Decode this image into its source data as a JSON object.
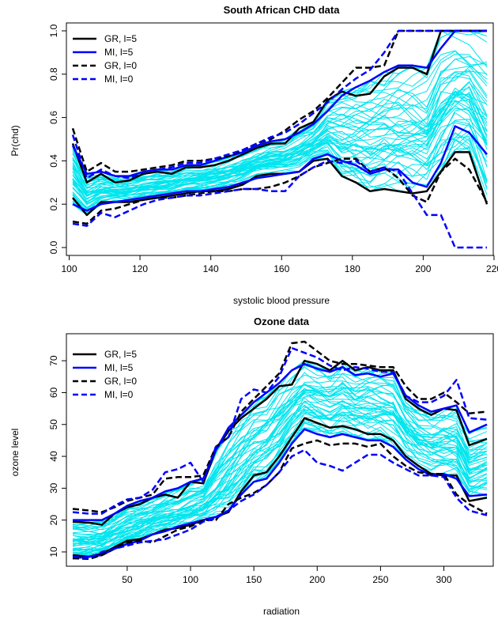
{
  "colors": {
    "band": "#00e5ee",
    "gr": "#000000",
    "mi": "#0000ff",
    "axis": "#000000",
    "background": "#ffffff"
  },
  "chart_data": [
    {
      "type": "line",
      "title": "South African CHD data",
      "xlabel": "systolic blood pressure",
      "ylabel": "Pr(chd)",
      "xlim": [
        101,
        218
      ],
      "ylim": [
        0,
        1
      ],
      "xticks": [
        100,
        120,
        140,
        160,
        180,
        200,
        220
      ],
      "yticks": [
        0.0,
        0.2,
        0.4,
        0.6,
        0.8,
        1.0
      ],
      "ytick_labels": [
        "0.0",
        "0.2",
        "0.4",
        "0.6",
        "0.8",
        "1.0"
      ],
      "grid": false,
      "legend_position": "top-left",
      "legend": [
        {
          "label": "GR, l=5",
          "color": "#000000",
          "style": "solid"
        },
        {
          "label": "MI, l=5",
          "color": "#0000ff",
          "style": "solid"
        },
        {
          "label": "GR, l=0",
          "color": "#000000",
          "style": "dashed"
        },
        {
          "label": "MI, l=0",
          "color": "#0000ff",
          "style": "dashed"
        }
      ],
      "x": [
        101,
        105,
        109,
        113,
        117,
        121,
        125,
        129,
        133,
        137,
        141,
        145,
        149,
        153,
        157,
        161,
        165,
        169,
        173,
        177,
        181,
        185,
        189,
        193,
        197,
        201,
        205,
        209,
        213,
        218
      ],
      "series": [
        {
          "name": "GR, l=5",
          "style": "solid",
          "color": "#000000",
          "values": [
            0.48,
            0.3,
            0.34,
            0.3,
            0.31,
            0.34,
            0.35,
            0.34,
            0.37,
            0.37,
            0.38,
            0.4,
            0.43,
            0.46,
            0.48,
            0.48,
            0.55,
            0.58,
            0.68,
            0.72,
            0.7,
            0.71,
            0.79,
            0.83,
            0.83,
            0.8,
            1.0,
            1.0,
            1.0,
            1.0
          ]
        },
        {
          "name": "GR, l=5",
          "style": "solid",
          "color": "#000000",
          "values": [
            0.23,
            0.15,
            0.21,
            0.21,
            0.21,
            0.22,
            0.23,
            0.24,
            0.25,
            0.26,
            0.26,
            0.27,
            0.29,
            0.33,
            0.34,
            0.34,
            0.35,
            0.4,
            0.41,
            0.33,
            0.3,
            0.26,
            0.27,
            0.26,
            0.25,
            0.26,
            0.35,
            0.44,
            0.44,
            0.2
          ]
        },
        {
          "name": "MI, l=5",
          "style": "solid",
          "color": "#0000ff",
          "values": [
            0.47,
            0.34,
            0.35,
            0.33,
            0.33,
            0.35,
            0.36,
            0.36,
            0.38,
            0.38,
            0.4,
            0.42,
            0.44,
            0.47,
            0.49,
            0.5,
            0.53,
            0.57,
            0.63,
            0.7,
            0.74,
            0.77,
            0.81,
            0.84,
            0.84,
            0.83,
            0.92,
            1.0,
            1.0,
            1.0
          ]
        },
        {
          "name": "MI, l=5",
          "style": "solid",
          "color": "#0000ff",
          "values": [
            0.2,
            0.17,
            0.2,
            0.21,
            0.22,
            0.23,
            0.24,
            0.25,
            0.26,
            0.26,
            0.27,
            0.28,
            0.3,
            0.32,
            0.33,
            0.34,
            0.35,
            0.41,
            0.43,
            0.4,
            0.38,
            0.34,
            0.36,
            0.36,
            0.3,
            0.28,
            0.39,
            0.56,
            0.53,
            0.43
          ]
        },
        {
          "name": "GR, l=0",
          "style": "dashed",
          "color": "#000000",
          "values": [
            0.55,
            0.35,
            0.39,
            0.35,
            0.35,
            0.36,
            0.37,
            0.38,
            0.4,
            0.4,
            0.41,
            0.42,
            0.45,
            0.48,
            0.5,
            0.54,
            0.59,
            0.63,
            0.69,
            0.76,
            0.83,
            0.83,
            0.84,
            1.0,
            1.0,
            1.0,
            1.0,
            1.0,
            1.0,
            1.0
          ]
        },
        {
          "name": "GR, l=0",
          "style": "dashed",
          "color": "#000000",
          "values": [
            0.12,
            0.11,
            0.17,
            0.18,
            0.2,
            0.22,
            0.23,
            0.23,
            0.24,
            0.25,
            0.26,
            0.26,
            0.27,
            0.27,
            0.28,
            0.3,
            0.33,
            0.37,
            0.39,
            0.41,
            0.41,
            0.35,
            0.37,
            0.32,
            0.24,
            0.21,
            0.35,
            0.41,
            0.36,
            0.21
          ]
        },
        {
          "name": "MI, l=0",
          "style": "dashed",
          "color": "#0000ff",
          "values": [
            0.52,
            0.32,
            0.36,
            0.33,
            0.32,
            0.35,
            0.36,
            0.37,
            0.39,
            0.39,
            0.41,
            0.43,
            0.45,
            0.48,
            0.51,
            0.53,
            0.57,
            0.62,
            0.67,
            0.73,
            0.78,
            0.82,
            0.9,
            1.0,
            1.0,
            1.0,
            1.0,
            1.0,
            1.0,
            1.0
          ]
        },
        {
          "name": "MI, l=0",
          "style": "dashed",
          "color": "#0000ff",
          "values": [
            0.11,
            0.1,
            0.16,
            0.14,
            0.17,
            0.2,
            0.22,
            0.23,
            0.24,
            0.24,
            0.25,
            0.26,
            0.27,
            0.27,
            0.26,
            0.26,
            0.33,
            0.37,
            0.4,
            0.39,
            0.4,
            0.35,
            0.37,
            0.35,
            0.25,
            0.15,
            0.15,
            0.0,
            0.0,
            0.0
          ]
        }
      ]
    },
    {
      "type": "line",
      "title": "Ozone data",
      "xlabel": "radiation",
      "ylabel": "ozone level",
      "xlim": [
        7,
        334
      ],
      "ylim": [
        8,
        76
      ],
      "xticks": [
        50,
        100,
        150,
        200,
        250,
        300
      ],
      "yticks": [
        10,
        20,
        30,
        40,
        50,
        60,
        70
      ],
      "ytick_labels": [
        "10",
        "20",
        "30",
        "40",
        "50",
        "60",
        "70"
      ],
      "grid": false,
      "legend_position": "top-left",
      "legend": [
        {
          "label": "GR, l=5",
          "color": "#000000",
          "style": "solid"
        },
        {
          "label": "MI, l=5",
          "color": "#0000ff",
          "style": "solid"
        },
        {
          "label": "GR, l=0",
          "color": "#000000",
          "style": "dashed"
        },
        {
          "label": "MI, l=0",
          "color": "#0000ff",
          "style": "dashed"
        }
      ],
      "x": [
        7,
        20,
        30,
        40,
        50,
        60,
        70,
        80,
        90,
        100,
        110,
        120,
        130,
        140,
        150,
        160,
        170,
        180,
        190,
        200,
        210,
        220,
        230,
        240,
        250,
        260,
        270,
        280,
        290,
        300,
        310,
        320,
        334
      ],
      "series": [
        {
          "name": "GR, l=5",
          "style": "solid",
          "color": "#000000",
          "values": [
            19.5,
            19.2,
            18.5,
            22,
            24,
            25,
            27,
            28,
            27,
            32,
            31.5,
            42,
            48,
            52,
            55,
            58,
            62,
            62.5,
            70,
            69,
            67,
            70,
            67,
            68,
            67,
            67,
            58,
            55,
            53,
            55,
            54.5,
            43.5,
            45.5
          ]
        },
        {
          "name": "GR, l=5",
          "style": "solid",
          "color": "#000000",
          "values": [
            9,
            8.5,
            9.5,
            11.5,
            13.5,
            14,
            15.5,
            17,
            17.5,
            18.5,
            20,
            21,
            22.5,
            29,
            34,
            35,
            40,
            46,
            52,
            50.5,
            49,
            49.5,
            48.5,
            47,
            47,
            45,
            40,
            37,
            34.5,
            34,
            34,
            26,
            27
          ]
        },
        {
          "name": "MI, l=5",
          "style": "solid",
          "color": "#0000ff",
          "values": [
            20,
            20,
            20,
            22,
            24.5,
            26,
            27,
            29,
            30,
            32,
            33,
            42,
            49,
            53,
            57,
            60,
            63,
            67,
            69,
            67.5,
            66.5,
            68,
            65.5,
            66,
            65,
            66,
            59,
            56,
            54,
            55,
            56,
            47.5,
            50
          ]
        },
        {
          "name": "MI, l=5",
          "style": "solid",
          "color": "#0000ff",
          "values": [
            8,
            8.5,
            9,
            11,
            12.5,
            13.5,
            15.5,
            16.5,
            18,
            19,
            20,
            21,
            23,
            28,
            32,
            33,
            38,
            44,
            48.5,
            47,
            46,
            47,
            46,
            45,
            45,
            43,
            39,
            36,
            34,
            34.5,
            33,
            27.5,
            28
          ]
        },
        {
          "name": "GR, l=0",
          "style": "dashed",
          "color": "#000000",
          "values": [
            23.5,
            23,
            22.5,
            24,
            26,
            27,
            28,
            33,
            33.5,
            33.5,
            34,
            43,
            46,
            54,
            58,
            62,
            66,
            75.5,
            76,
            73,
            70,
            69,
            69,
            68.5,
            68,
            68,
            62,
            58,
            58,
            60,
            57,
            53.5,
            54
          ]
        },
        {
          "name": "GR, l=0",
          "style": "dashed",
          "color": "#000000",
          "values": [
            8,
            7.8,
            9,
            11,
            13,
            13.5,
            13,
            15,
            17,
            18,
            20,
            20,
            25,
            27,
            28.5,
            31,
            35,
            42.5,
            44,
            45,
            43.5,
            44,
            44,
            43,
            44,
            40,
            37,
            35,
            34.5,
            34.5,
            28,
            25,
            22
          ]
        },
        {
          "name": "MI, l=0",
          "style": "dashed",
          "color": "#0000ff",
          "values": [
            22.5,
            22,
            22,
            24.5,
            26.5,
            27,
            29.5,
            35,
            36,
            38,
            32,
            43,
            46,
            58,
            61,
            60,
            65,
            74,
            72.5,
            71,
            68.5,
            67,
            68,
            67.5,
            66.5,
            66.5,
            59,
            57,
            57,
            59,
            64,
            52,
            51.5
          ]
        },
        {
          "name": "MI, l=0",
          "style": "dashed",
          "color": "#0000ff",
          "values": [
            8.5,
            8,
            10,
            11,
            12,
            13,
            13.5,
            14,
            15.5,
            17,
            19.5,
            20.5,
            23,
            26,
            28,
            31,
            35,
            40,
            42,
            38,
            37,
            35.5,
            38,
            40.5,
            40.5,
            38,
            36,
            34,
            34,
            33.5,
            27,
            23,
            21.5
          ]
        }
      ]
    }
  ]
}
